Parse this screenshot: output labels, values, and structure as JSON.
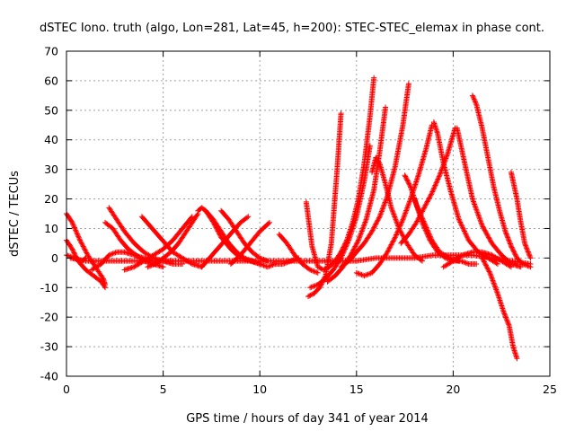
{
  "chart_data": {
    "type": "scatter",
    "title": "dSTEC Iono. truth (algo, Lon=281, Lat=45, h=200): STEC-STEC_elemax in phase cont.",
    "xlabel": "GPS time / hours of day 341 of year 2014",
    "ylabel": "dSTEC  / TECUs",
    "xlim": [
      0,
      25
    ],
    "ylim": [
      -40,
      70
    ],
    "xticks": [
      0,
      5,
      10,
      15,
      20,
      25
    ],
    "yticks": [
      -40,
      -30,
      -20,
      -10,
      0,
      10,
      20,
      30,
      40,
      50,
      60,
      70
    ],
    "xtick_labels": [
      "0",
      "5",
      "10",
      "15",
      "20",
      "25"
    ],
    "ytick_labels": [
      "-40",
      "-30",
      "-20",
      "-10",
      "0",
      "10",
      "20",
      "30",
      "40",
      "50",
      "60",
      "70"
    ],
    "grid": true,
    "legend": "none",
    "marker": "+",
    "color": "#ff0000",
    "series": [
      {
        "x": [
          0.0,
          0.3,
          0.7,
          1.1,
          1.5,
          1.9,
          2.0
        ],
        "y": [
          15,
          12,
          6,
          1,
          -3,
          -7,
          -9
        ]
      },
      {
        "x": [
          0.0,
          0.3,
          0.6,
          1.0,
          1.4,
          1.8,
          2.0
        ],
        "y": [
          6,
          3,
          -1,
          -4,
          -6,
          -8,
          -10
        ]
      },
      {
        "x": [
          0.0,
          0.4,
          0.8,
          1.0
        ],
        "y": [
          1,
          0,
          -1,
          0
        ]
      },
      {
        "x": [
          1.3,
          1.8,
          2.2,
          2.6,
          3.0,
          3.5,
          4.0,
          4.5,
          5.0,
          5.5
        ],
        "y": [
          -4,
          -2,
          1,
          2,
          2,
          1,
          0,
          -1,
          -1,
          -1
        ]
      },
      {
        "x": [
          2.2,
          2.6,
          3.0,
          3.5,
          4.0,
          4.5,
          5.0,
          5.5,
          6.0
        ],
        "y": [
          17,
          13,
          9,
          5,
          2,
          0,
          -1,
          -2,
          -2
        ]
      },
      {
        "x": [
          2.0,
          2.4,
          2.8,
          3.2,
          3.6,
          4.0,
          4.5,
          5.0
        ],
        "y": [
          12,
          10,
          6,
          3,
          1,
          -1,
          -2,
          -3
        ]
      },
      {
        "x": [
          3.9,
          4.3,
          4.7,
          5.1,
          5.5,
          6.0,
          6.5,
          7.0
        ],
        "y": [
          14,
          11,
          8,
          5,
          2,
          0,
          -2,
          -3
        ]
      },
      {
        "x": [
          3.0,
          3.5,
          4.0,
          4.5,
          5.0,
          5.5,
          6.0,
          6.5
        ],
        "y": [
          -4,
          -3,
          -1,
          1,
          3,
          6,
          10,
          14
        ]
      },
      {
        "x": [
          4.2,
          4.6,
          5.0,
          5.4,
          5.8,
          6.2,
          6.6,
          6.8
        ],
        "y": [
          -3,
          -2,
          0,
          2,
          5,
          9,
          13,
          15
        ]
      },
      {
        "x": [
          6.8,
          7.0,
          7.2,
          7.6,
          8.0,
          8.5,
          9.0,
          9.5,
          10.0
        ],
        "y": [
          16,
          17,
          16,
          12,
          7,
          3,
          0,
          -1,
          -2
        ]
      },
      {
        "x": [
          7.2,
          7.6,
          8.0,
          8.4,
          8.8,
          9.2,
          9.6,
          10.0
        ],
        "y": [
          16,
          13,
          9,
          5,
          2,
          0,
          -1,
          -2
        ]
      },
      {
        "x": [
          7.0,
          7.4,
          7.8,
          8.2,
          8.6,
          9.0,
          9.4
        ],
        "y": [
          -3,
          0,
          3,
          6,
          9,
          12,
          14
        ]
      },
      {
        "x": [
          8.0,
          8.4,
          8.8,
          9.2,
          9.6,
          10.0,
          10.4
        ],
        "y": [
          16,
          13,
          9,
          5,
          2,
          0,
          -1
        ]
      },
      {
        "x": [
          8.5,
          9.0,
          9.5,
          10.0,
          10.5
        ],
        "y": [
          -2,
          1,
          5,
          9,
          12
        ]
      },
      {
        "x": [
          10.0,
          10.4,
          10.8,
          11.2,
          11.6,
          12.0
        ],
        "y": [
          -2,
          -3,
          -2,
          -2,
          -1,
          0
        ]
      },
      {
        "x": [
          11.0,
          11.4,
          11.8,
          12.2,
          12.6,
          13.0
        ],
        "y": [
          8,
          5,
          1,
          -2,
          -4,
          -5
        ]
      },
      {
        "x": [
          0.2,
          1.0,
          2.0,
          3.0,
          4.0,
          5.0,
          6.0,
          7.0,
          8.0,
          9.0,
          10.0,
          11.0,
          12.0,
          13.0,
          14.0,
          15.0,
          16.0,
          17.0,
          18.0,
          19.0,
          20.0,
          21.0,
          22.0,
          23.0,
          24.0
        ],
        "y": [
          0,
          -1,
          -1,
          -1,
          -1,
          -1,
          -1,
          -1,
          -1,
          -1,
          -1,
          -1,
          -1,
          -1,
          -1,
          -1,
          0,
          0,
          0,
          1,
          1,
          1,
          0,
          -1,
          -2
        ]
      },
      {
        "x": [
          12.5,
          12.8,
          13.1,
          13.4,
          13.7,
          14.0,
          14.2
        ],
        "y": [
          -13,
          -12,
          -10,
          -6,
          5,
          30,
          49
        ]
      },
      {
        "x": [
          12.4,
          12.7,
          13.0,
          13.3,
          13.6,
          13.9,
          14.2,
          14.5,
          14.8,
          15.1,
          15.4,
          15.7,
          15.9
        ],
        "y": [
          19,
          4,
          -3,
          -4,
          -3,
          -1,
          2,
          6,
          12,
          20,
          32,
          48,
          61
        ]
      },
      {
        "x": [
          12.6,
          13.0,
          13.4,
          13.8,
          14.2,
          14.6,
          15.0,
          15.4,
          15.7
        ],
        "y": [
          -10,
          -9,
          -7,
          -4,
          0,
          6,
          14,
          26,
          38
        ]
      },
      {
        "x": [
          13.5,
          13.9,
          14.3,
          14.7,
          15.1,
          15.5,
          15.9,
          16.2,
          16.5
        ],
        "y": [
          -8,
          -6,
          -3,
          1,
          6,
          13,
          23,
          36,
          51
        ]
      },
      {
        "x": [
          14.2,
          14.6,
          15.0,
          15.4,
          15.8,
          16.2,
          16.6,
          17.0,
          17.4,
          17.7
        ],
        "y": [
          -3,
          -1,
          2,
          5,
          9,
          14,
          21,
          31,
          45,
          59
        ]
      },
      {
        "x": [
          15.0,
          15.4,
          15.8,
          16.2,
          16.6,
          17.0,
          17.4,
          17.8,
          18.2,
          18.6,
          18.9
        ],
        "y": [
          -5,
          -6,
          -5,
          -2,
          2,
          7,
          13,
          20,
          28,
          37,
          45
        ]
      },
      {
        "x": [
          15.8,
          16.0,
          16.2,
          16.5,
          16.8,
          17.2,
          17.6,
          18.0,
          18.4
        ],
        "y": [
          29,
          34,
          32,
          25,
          17,
          10,
          5,
          1,
          -1
        ]
      },
      {
        "x": [
          17.5,
          17.8,
          18.1,
          18.5,
          18.9,
          19.3,
          19.8,
          20.3
        ],
        "y": [
          28,
          24,
          18,
          12,
          6,
          2,
          0,
          -1
        ]
      },
      {
        "x": [
          18.0,
          18.4,
          18.8,
          19.2,
          19.6,
          20.0,
          20.4,
          20.8,
          21.2
        ],
        "y": [
          20,
          12,
          6,
          2,
          0,
          -1,
          -1,
          -2,
          -2
        ]
      },
      {
        "x": [
          17.3,
          17.7,
          18.1,
          18.5,
          18.9,
          19.3,
          19.7,
          20.1
        ],
        "y": [
          5,
          8,
          12,
          17,
          22,
          28,
          35,
          44
        ]
      },
      {
        "x": [
          19.0,
          19.2,
          19.5,
          19.9,
          20.3,
          20.8,
          21.3,
          21.8,
          22.3
        ],
        "y": [
          46,
          42,
          32,
          22,
          13,
          6,
          2,
          0,
          -2
        ]
      },
      {
        "x": [
          20.2,
          20.6,
          21.0,
          21.5,
          22.0,
          22.5,
          23.0,
          23.5
        ],
        "y": [
          44,
          32,
          20,
          11,
          5,
          1,
          -2,
          -3
        ]
      },
      {
        "x": [
          21.0,
          21.2,
          21.5,
          21.8,
          22.1,
          22.4,
          22.7,
          23.0,
          23.3,
          23.6,
          24.0
        ],
        "y": [
          55,
          52,
          44,
          34,
          24,
          16,
          9,
          4,
          0,
          -2,
          -3
        ]
      },
      {
        "x": [
          21.5,
          21.9,
          22.3,
          22.6,
          22.9,
          23.1,
          23.3
        ],
        "y": [
          0,
          -5,
          -12,
          -18,
          -23,
          -30,
          -34
        ]
      },
      {
        "x": [
          23.0,
          23.1,
          23.3,
          23.5,
          23.7,
          24.0
        ],
        "y": [
          29,
          26,
          20,
          12,
          5,
          0
        ]
      },
      {
        "x": [
          19.5,
          20.0,
          20.5,
          21.0,
          21.5,
          22.0,
          22.5,
          23.0
        ],
        "y": [
          -3,
          -1,
          1,
          2,
          2,
          1,
          -1,
          -3
        ]
      }
    ]
  }
}
